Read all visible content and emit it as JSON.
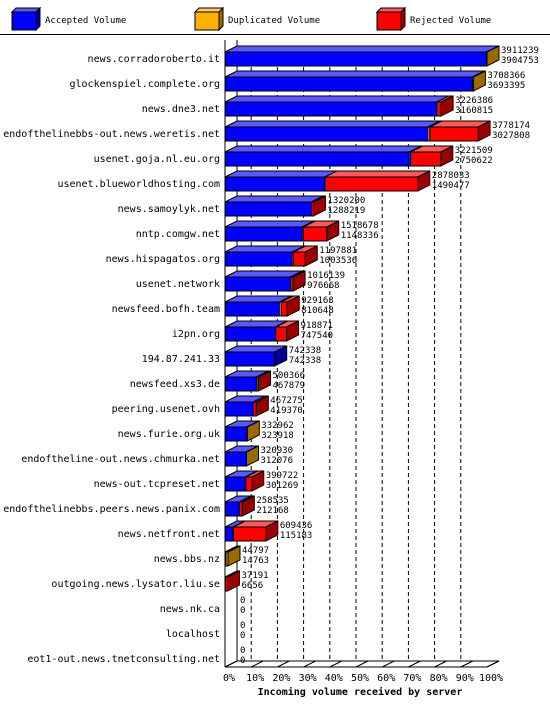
{
  "chart_data": {
    "type": "bar",
    "orientation": "horizontal",
    "stacked": true,
    "xlabel": "Incoming volume received by server",
    "x_ticks": [
      "0%",
      "10%",
      "20%",
      "30%",
      "40%",
      "50%",
      "60%",
      "70%",
      "80%",
      "90%",
      "100%"
    ],
    "xlim": [
      0,
      3911239
    ],
    "legend": [
      {
        "name": "Accepted Volume",
        "color": "#0000ff"
      },
      {
        "name": "Duplicated Volume",
        "color": "#ffb000"
      },
      {
        "name": "Rejected Volume",
        "color": "#ff0000"
      }
    ],
    "legend_placement": "top",
    "grid": "vertical dashed",
    "servers": [
      {
        "name": "news.corradoroberto.it",
        "total": 3911239,
        "accepted": 3904753
      },
      {
        "name": "glockenspiel.complete.org",
        "total": 3708366,
        "accepted": 3693395
      },
      {
        "name": "news.dne3.net",
        "total": 3226386,
        "accepted": 3160815
      },
      {
        "name": "endofthelinebbs-out.news.weretis.net",
        "total": 3778174,
        "accepted": 3027808
      },
      {
        "name": "usenet.goja.nl.eu.org",
        "total": 3221509,
        "accepted": 2750622
      },
      {
        "name": "usenet.blueworldhosting.com",
        "total": 2878033,
        "accepted": 1490477
      },
      {
        "name": "news.samoylyk.net",
        "total": 1320200,
        "accepted": 1288219
      },
      {
        "name": "nntp.comgw.net",
        "total": 1518678,
        "accepted": 1148336
      },
      {
        "name": "news.hispagatos.org",
        "total": 1197881,
        "accepted": 1003536
      },
      {
        "name": "usenet.network",
        "total": 1016139,
        "accepted": 976668
      },
      {
        "name": "newsfeed.bofh.team",
        "total": 929163,
        "accepted": 810648
      },
      {
        "name": "i2pn.org",
        "total": 918871,
        "accepted": 747540
      },
      {
        "name": "194.87.241.33",
        "total": 742338,
        "accepted": 742338
      },
      {
        "name": "newsfeed.xs3.de",
        "total": 500366,
        "accepted": 467879
      },
      {
        "name": "peering.usenet.ovh",
        "total": 467275,
        "accepted": 419370
      },
      {
        "name": "news.furie.org.uk",
        "total": 332962,
        "accepted": 323918
      },
      {
        "name": "endoftheline-out.news.chmurka.net",
        "total": 320930,
        "accepted": 312076
      },
      {
        "name": "news-out.tcpreset.net",
        "total": 399722,
        "accepted": 301269
      },
      {
        "name": "endofthelinebbs.peers.news.panix.com",
        "total": 258535,
        "accepted": 212168
      },
      {
        "name": "news.netfront.net",
        "total": 609436,
        "accepted": 115183
      },
      {
        "name": "news.bbs.nz",
        "total": 44797,
        "accepted": 14763
      },
      {
        "name": "outgoing.news.lysator.liu.se",
        "total": 37191,
        "accepted": 6656
      },
      {
        "name": "news.nk.ca",
        "total": 0,
        "accepted": 0
      },
      {
        "name": "localhost",
        "total": 0,
        "accepted": 0
      },
      {
        "name": "eot1-out.news.tnetconsulting.net",
        "total": 0,
        "accepted": 0
      }
    ],
    "segments": [
      [
        3904753,
        6486,
        0
      ],
      [
        3693395,
        14971,
        0
      ],
      [
        3160815,
        0,
        65571
      ],
      [
        3027808,
        30000,
        720366
      ],
      [
        2750622,
        20000,
        450887
      ],
      [
        1490477,
        0,
        1387556
      ],
      [
        1288219,
        0,
        31981
      ],
      [
        1148336,
        20000,
        350342
      ],
      [
        1003536,
        20000,
        174345
      ],
      [
        976668,
        0,
        39471
      ],
      [
        810648,
        30000,
        88515
      ],
      [
        747540,
        10000,
        161331
      ],
      [
        742338,
        0,
        0
      ],
      [
        467879,
        0,
        32487
      ],
      [
        419370,
        0,
        47905
      ],
      [
        323918,
        9044,
        0
      ],
      [
        312076,
        8854,
        0
      ],
      [
        301269,
        10000,
        88453
      ],
      [
        212168,
        5000,
        41367
      ],
      [
        115183,
        10000,
        484253
      ],
      [
        14763,
        30034,
        0
      ],
      [
        6656,
        0,
        30535
      ],
      [
        0,
        0,
        0
      ],
      [
        0,
        0,
        0
      ],
      [
        0,
        0,
        0
      ]
    ]
  }
}
